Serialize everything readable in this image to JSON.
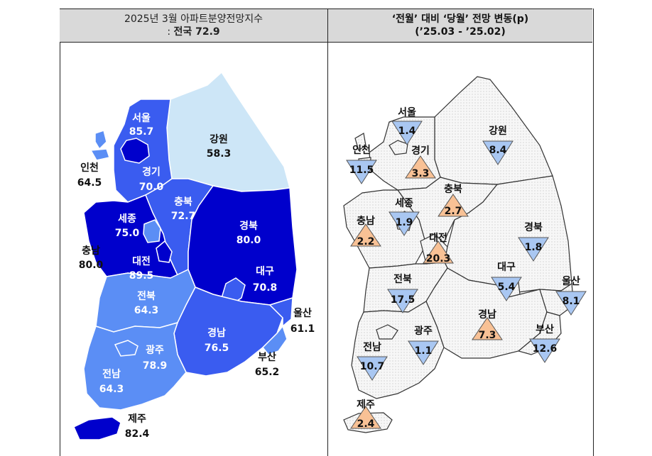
{
  "header_left": {
    "line1": "2025년  3월  아파트분양전망지수",
    "line2_prefix": ":  ",
    "line2_bold": "전국",
    "line2_value": "  72.9"
  },
  "header_right": {
    "line1": "‘전월’ 대비 ‘당월’ 전망 변동(p)",
    "line2": "(’25.03   -  ’25.02)"
  },
  "colors": {
    "very_dark": "#0000cc",
    "dark": "#3a5cf0",
    "medium": "#5b8ef5",
    "light": "#cde6f7",
    "up": "#f8c195",
    "down": "#a9c7f2"
  },
  "left_map": [
    {
      "name": "서울",
      "value": "85.7"
    },
    {
      "name": "인천",
      "value": "64.5"
    },
    {
      "name": "경기",
      "value": "70.0"
    },
    {
      "name": "강원",
      "value": "58.3"
    },
    {
      "name": "세종",
      "value": "75.0"
    },
    {
      "name": "충북",
      "value": "72.7"
    },
    {
      "name": "충남",
      "value": "80.0"
    },
    {
      "name": "대전",
      "value": "89.5"
    },
    {
      "name": "경북",
      "value": "80.0"
    },
    {
      "name": "대구",
      "value": "70.8"
    },
    {
      "name": "전북",
      "value": "64.3"
    },
    {
      "name": "울산",
      "value": "61.1"
    },
    {
      "name": "경남",
      "value": "76.5"
    },
    {
      "name": "광주",
      "value": "78.9"
    },
    {
      "name": "부산",
      "value": "65.2"
    },
    {
      "name": "전남",
      "value": "64.3"
    },
    {
      "name": "제주",
      "value": "82.4"
    }
  ],
  "right_map": [
    {
      "name": "서울",
      "value": "1.4",
      "dir": "down"
    },
    {
      "name": "강원",
      "value": "8.4",
      "dir": "down"
    },
    {
      "name": "인천",
      "value": "11.5",
      "dir": "down"
    },
    {
      "name": "경기",
      "value": "3.3",
      "dir": "up"
    },
    {
      "name": "충북",
      "value": "2.7",
      "dir": "up"
    },
    {
      "name": "세종",
      "value": "1.9",
      "dir": "down"
    },
    {
      "name": "충남",
      "value": "2.2",
      "dir": "up"
    },
    {
      "name": "경북",
      "value": "1.8",
      "dir": "down"
    },
    {
      "name": "대전",
      "value": "20.3",
      "dir": "up"
    },
    {
      "name": "대구",
      "value": "5.4",
      "dir": "down"
    },
    {
      "name": "전북",
      "value": "17.5",
      "dir": "down"
    },
    {
      "name": "울산",
      "value": "8.1",
      "dir": "down"
    },
    {
      "name": "경남",
      "value": "7.3",
      "dir": "up"
    },
    {
      "name": "광주",
      "value": "1.1",
      "dir": "down"
    },
    {
      "name": "부산",
      "value": "12.6",
      "dir": "down"
    },
    {
      "name": "전남",
      "value": "10.7",
      "dir": "down"
    },
    {
      "name": "제주",
      "value": "2.4",
      "dir": "up"
    }
  ]
}
